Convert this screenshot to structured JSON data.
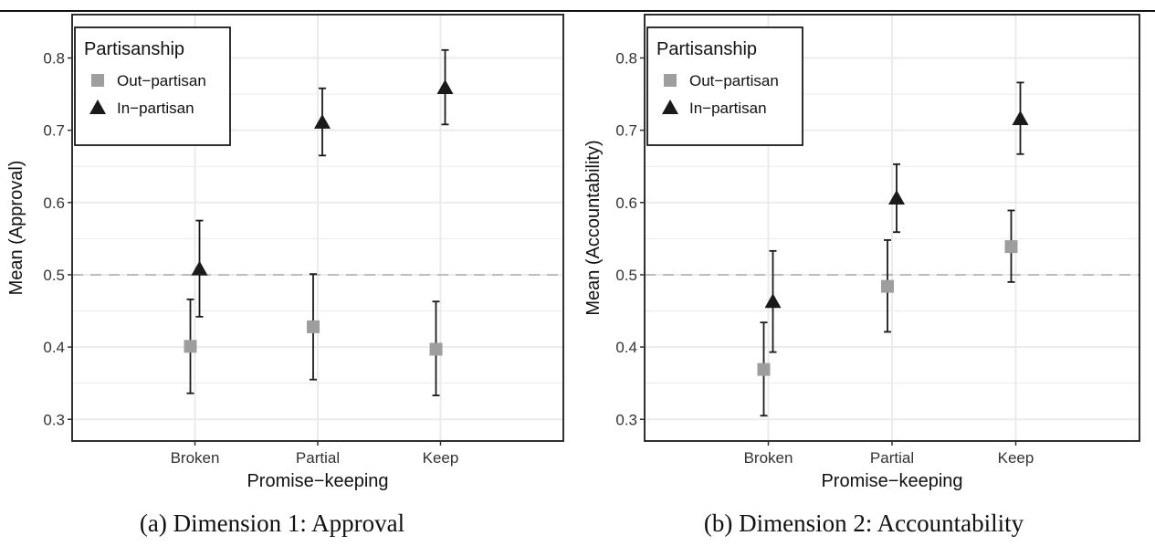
{
  "captions": {
    "a": "(a) Dimension 1: Approval",
    "b": "(b) Dimension 2: Accountability"
  },
  "colors": {
    "out_partisan": "#9e9e9e",
    "in_partisan": "#1a1a1a",
    "reference_line": "#bdbdbd",
    "grid": "#ebebeb"
  },
  "chart_data": [
    {
      "type": "scatter",
      "xlabel": "Promise−keeping",
      "ylabel": "Mean (Approval)",
      "categories": [
        "Broken",
        "Partial",
        "Keep"
      ],
      "ylim": [
        0.27,
        0.86
      ],
      "yticks": [
        0.3,
        0.4,
        0.5,
        0.6,
        0.7,
        0.8
      ],
      "ytick_labels": [
        "0.3",
        "0.4",
        "0.5",
        "0.6",
        "0.7",
        "0.8"
      ],
      "reference_line": 0.5,
      "grid": true,
      "legend": {
        "title": "Partisanship",
        "position": "top-left"
      },
      "series": [
        {
          "name": "Out−partisan",
          "marker": "square",
          "values": [
            0.401,
            0.428,
            0.397
          ],
          "lower": [
            0.336,
            0.355,
            0.333
          ],
          "upper": [
            0.466,
            0.501,
            0.463
          ]
        },
        {
          "name": "In−partisan",
          "marker": "triangle",
          "values": [
            0.508,
            0.711,
            0.759
          ],
          "lower": [
            0.442,
            0.665,
            0.708
          ],
          "upper": [
            0.575,
            0.758,
            0.811
          ]
        }
      ]
    },
    {
      "type": "scatter",
      "xlabel": "Promise−keeping",
      "ylabel": "Mean (Accountability)",
      "categories": [
        "Broken",
        "Partial",
        "Keep"
      ],
      "ylim": [
        0.27,
        0.86
      ],
      "yticks": [
        0.3,
        0.4,
        0.5,
        0.6,
        0.7,
        0.8
      ],
      "ytick_labels": [
        "0.3",
        "0.4",
        "0.5",
        "0.6",
        "0.7",
        "0.8"
      ],
      "reference_line": 0.5,
      "grid": true,
      "legend": {
        "title": "Partisanship",
        "position": "top-left"
      },
      "series": [
        {
          "name": "Out−partisan",
          "marker": "square",
          "values": [
            0.369,
            0.484,
            0.539
          ],
          "lower": [
            0.305,
            0.421,
            0.49
          ],
          "upper": [
            0.434,
            0.548,
            0.589
          ]
        },
        {
          "name": "In−partisan",
          "marker": "triangle",
          "values": [
            0.463,
            0.606,
            0.716
          ],
          "lower": [
            0.393,
            0.559,
            0.667
          ],
          "upper": [
            0.533,
            0.653,
            0.766
          ]
        }
      ]
    }
  ]
}
